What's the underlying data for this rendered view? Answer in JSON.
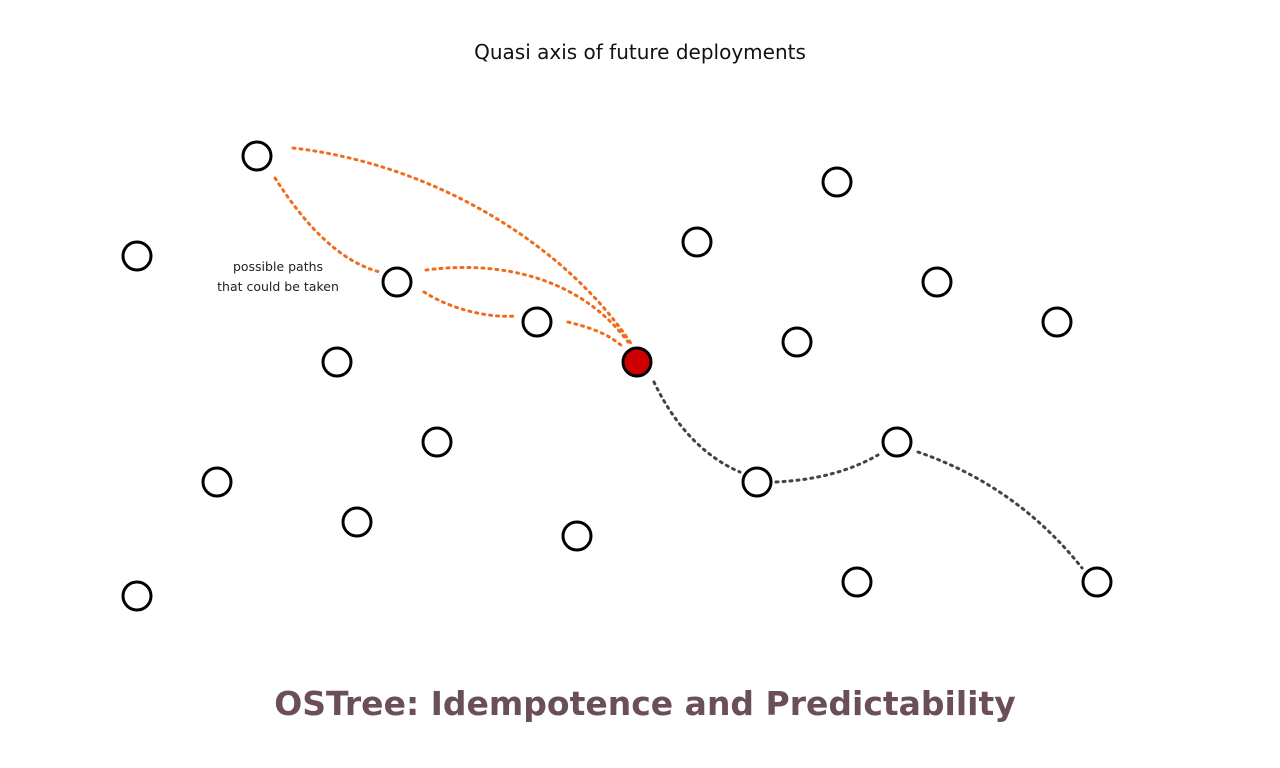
{
  "heading": "Quasi axis of future deployments",
  "annotation": {
    "line1": "possible paths",
    "line2": "that could be taken"
  },
  "title": "OSTree: Idempotence and Predictability",
  "colors": {
    "node_stroke": "#000000",
    "current_node_fill": "#cc0000",
    "possible_path": "#f26b1d",
    "taken_path": "#444444",
    "title": "#6b4f58"
  }
}
